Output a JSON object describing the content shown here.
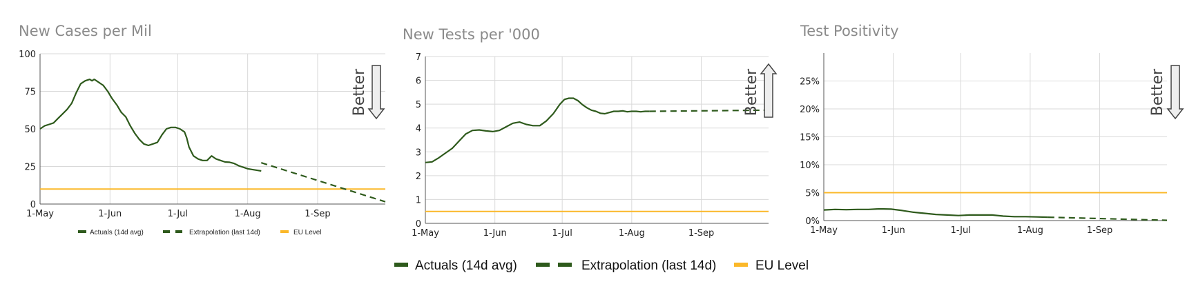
{
  "colors": {
    "actual": "#2e5a1c",
    "extrap": "#2e5a1c",
    "eu": "#fbb829",
    "grid": "#d9d9d9"
  },
  "legend_small": {
    "actual": "Actuals (14d avg)",
    "extrap": "Extrapolation (last 14d)",
    "eu": "EU Level"
  },
  "legend": {
    "actual": "Actuals (14d avg)",
    "extrap": "Extrapolation (last 14d)",
    "eu": "EU Level"
  },
  "chart_data": [
    {
      "type": "line",
      "title": "New Cases per Mil",
      "better_label": "Better",
      "better_direction": "down",
      "x_ticks": [
        "1-May",
        "1-Jun",
        "1-Jul",
        "1-Aug",
        "1-Sep"
      ],
      "x_tick_days": [
        0,
        31,
        61,
        92,
        123
      ],
      "xlim_days": [
        0,
        153
      ],
      "ylim": [
        0,
        100
      ],
      "y_ticks": [
        0,
        25,
        50,
        75,
        100
      ],
      "y_tick_labels": [
        "0",
        "25",
        "50",
        "75",
        "100"
      ],
      "eu_level": 10,
      "series": [
        {
          "name": "Actuals (14d avg)",
          "style": "solid",
          "x_days": [
            0,
            2,
            4,
            6,
            8,
            10,
            12,
            14,
            16,
            18,
            20,
            22,
            23,
            24,
            25,
            26,
            27,
            28,
            30,
            32,
            34,
            36,
            38,
            40,
            42,
            44,
            46,
            48,
            50,
            52,
            54,
            56,
            58,
            59,
            60,
            62,
            64,
            65,
            66,
            68,
            70,
            72,
            74,
            76,
            78,
            80,
            82,
            84,
            86,
            88,
            89,
            90,
            91,
            92,
            94,
            96,
            98
          ],
          "values": [
            50,
            52,
            53,
            54,
            57,
            60,
            63,
            67,
            74,
            80,
            82,
            83,
            82,
            83,
            82,
            81,
            80,
            79,
            75,
            70,
            66,
            61,
            58,
            52,
            47,
            43,
            40,
            39,
            40,
            41,
            46,
            50,
            51,
            51,
            51,
            50,
            48,
            44,
            38,
            32,
            30,
            29,
            29,
            32,
            30,
            29,
            28,
            27.8,
            27,
            25.5,
            25,
            24.5,
            24,
            23.5,
            23,
            22.5,
            22
          ]
        },
        {
          "name": "Extrapolation (last 14d)",
          "style": "dashed",
          "x_days": [
            98,
            153
          ],
          "values": [
            27.5,
            1.5
          ]
        }
      ]
    },
    {
      "type": "line",
      "title": "New Tests per '000",
      "better_label": "Better",
      "better_direction": "up",
      "x_ticks": [
        "1-May",
        "1-Jun",
        "1-Jul",
        "1-Aug",
        "1-Sep"
      ],
      "x_tick_days": [
        0,
        31,
        61,
        92,
        123
      ],
      "xlim_days": [
        0,
        153
      ],
      "ylim": [
        0,
        7
      ],
      "y_ticks": [
        0,
        1,
        2,
        3,
        4,
        5,
        6,
        7
      ],
      "y_tick_labels": [
        "0",
        "1",
        "2",
        "3",
        "4",
        "5",
        "6",
        "7"
      ],
      "eu_level": 0.5,
      "series": [
        {
          "name": "Actuals (14d avg)",
          "style": "solid",
          "x_days": [
            0,
            3,
            6,
            9,
            12,
            15,
            18,
            21,
            24,
            27,
            30,
            33,
            36,
            39,
            42,
            45,
            48,
            51,
            54,
            57,
            60,
            62,
            64,
            66,
            68,
            70,
            72,
            74,
            76,
            78,
            80,
            82,
            84,
            86,
            88,
            90,
            92,
            94,
            96,
            98,
            100
          ],
          "values": [
            2.55,
            2.58,
            2.75,
            2.95,
            3.15,
            3.45,
            3.75,
            3.9,
            3.92,
            3.88,
            3.85,
            3.9,
            4.05,
            4.2,
            4.25,
            4.15,
            4.1,
            4.1,
            4.3,
            4.6,
            5.0,
            5.2,
            5.25,
            5.25,
            5.15,
            4.98,
            4.85,
            4.75,
            4.7,
            4.62,
            4.6,
            4.65,
            4.7,
            4.7,
            4.72,
            4.68,
            4.7,
            4.7,
            4.68,
            4.7,
            4.7
          ]
        },
        {
          "name": "Extrapolation (last 14d)",
          "style": "dashed",
          "x_days": [
            100,
            153
          ],
          "values": [
            4.7,
            4.75
          ]
        }
      ]
    },
    {
      "type": "line",
      "title": "Test Positivity",
      "better_label": "Better",
      "better_direction": "down",
      "x_ticks": [
        "1-May",
        "1-Jun",
        "1-Jul",
        "1-Aug",
        "1-Sep"
      ],
      "x_tick_days": [
        0,
        31,
        61,
        92,
        123
      ],
      "xlim_days": [
        0,
        153
      ],
      "ylim": [
        0,
        30
      ],
      "y_ticks": [
        0,
        5,
        10,
        15,
        20,
        25
      ],
      "y_tick_labels": [
        "0%",
        "5%",
        "10%",
        "15%",
        "20%",
        "25%"
      ],
      "eu_level": 5,
      "series": [
        {
          "name": "Actuals (14d avg)",
          "style": "solid",
          "x_days": [
            0,
            5,
            10,
            15,
            20,
            25,
            30,
            35,
            40,
            45,
            50,
            55,
            60,
            65,
            70,
            75,
            80,
            85,
            90,
            95,
            100
          ],
          "values": [
            1.9,
            2.0,
            1.95,
            2.0,
            2.0,
            2.1,
            2.05,
            1.8,
            1.5,
            1.3,
            1.1,
            1.0,
            0.9,
            1.0,
            1.0,
            1.0,
            0.8,
            0.7,
            0.7,
            0.65,
            0.6
          ]
        },
        {
          "name": "Extrapolation (last 14d)",
          "style": "dashed",
          "x_days": [
            100,
            153
          ],
          "values": [
            0.6,
            0.05
          ]
        }
      ]
    }
  ]
}
